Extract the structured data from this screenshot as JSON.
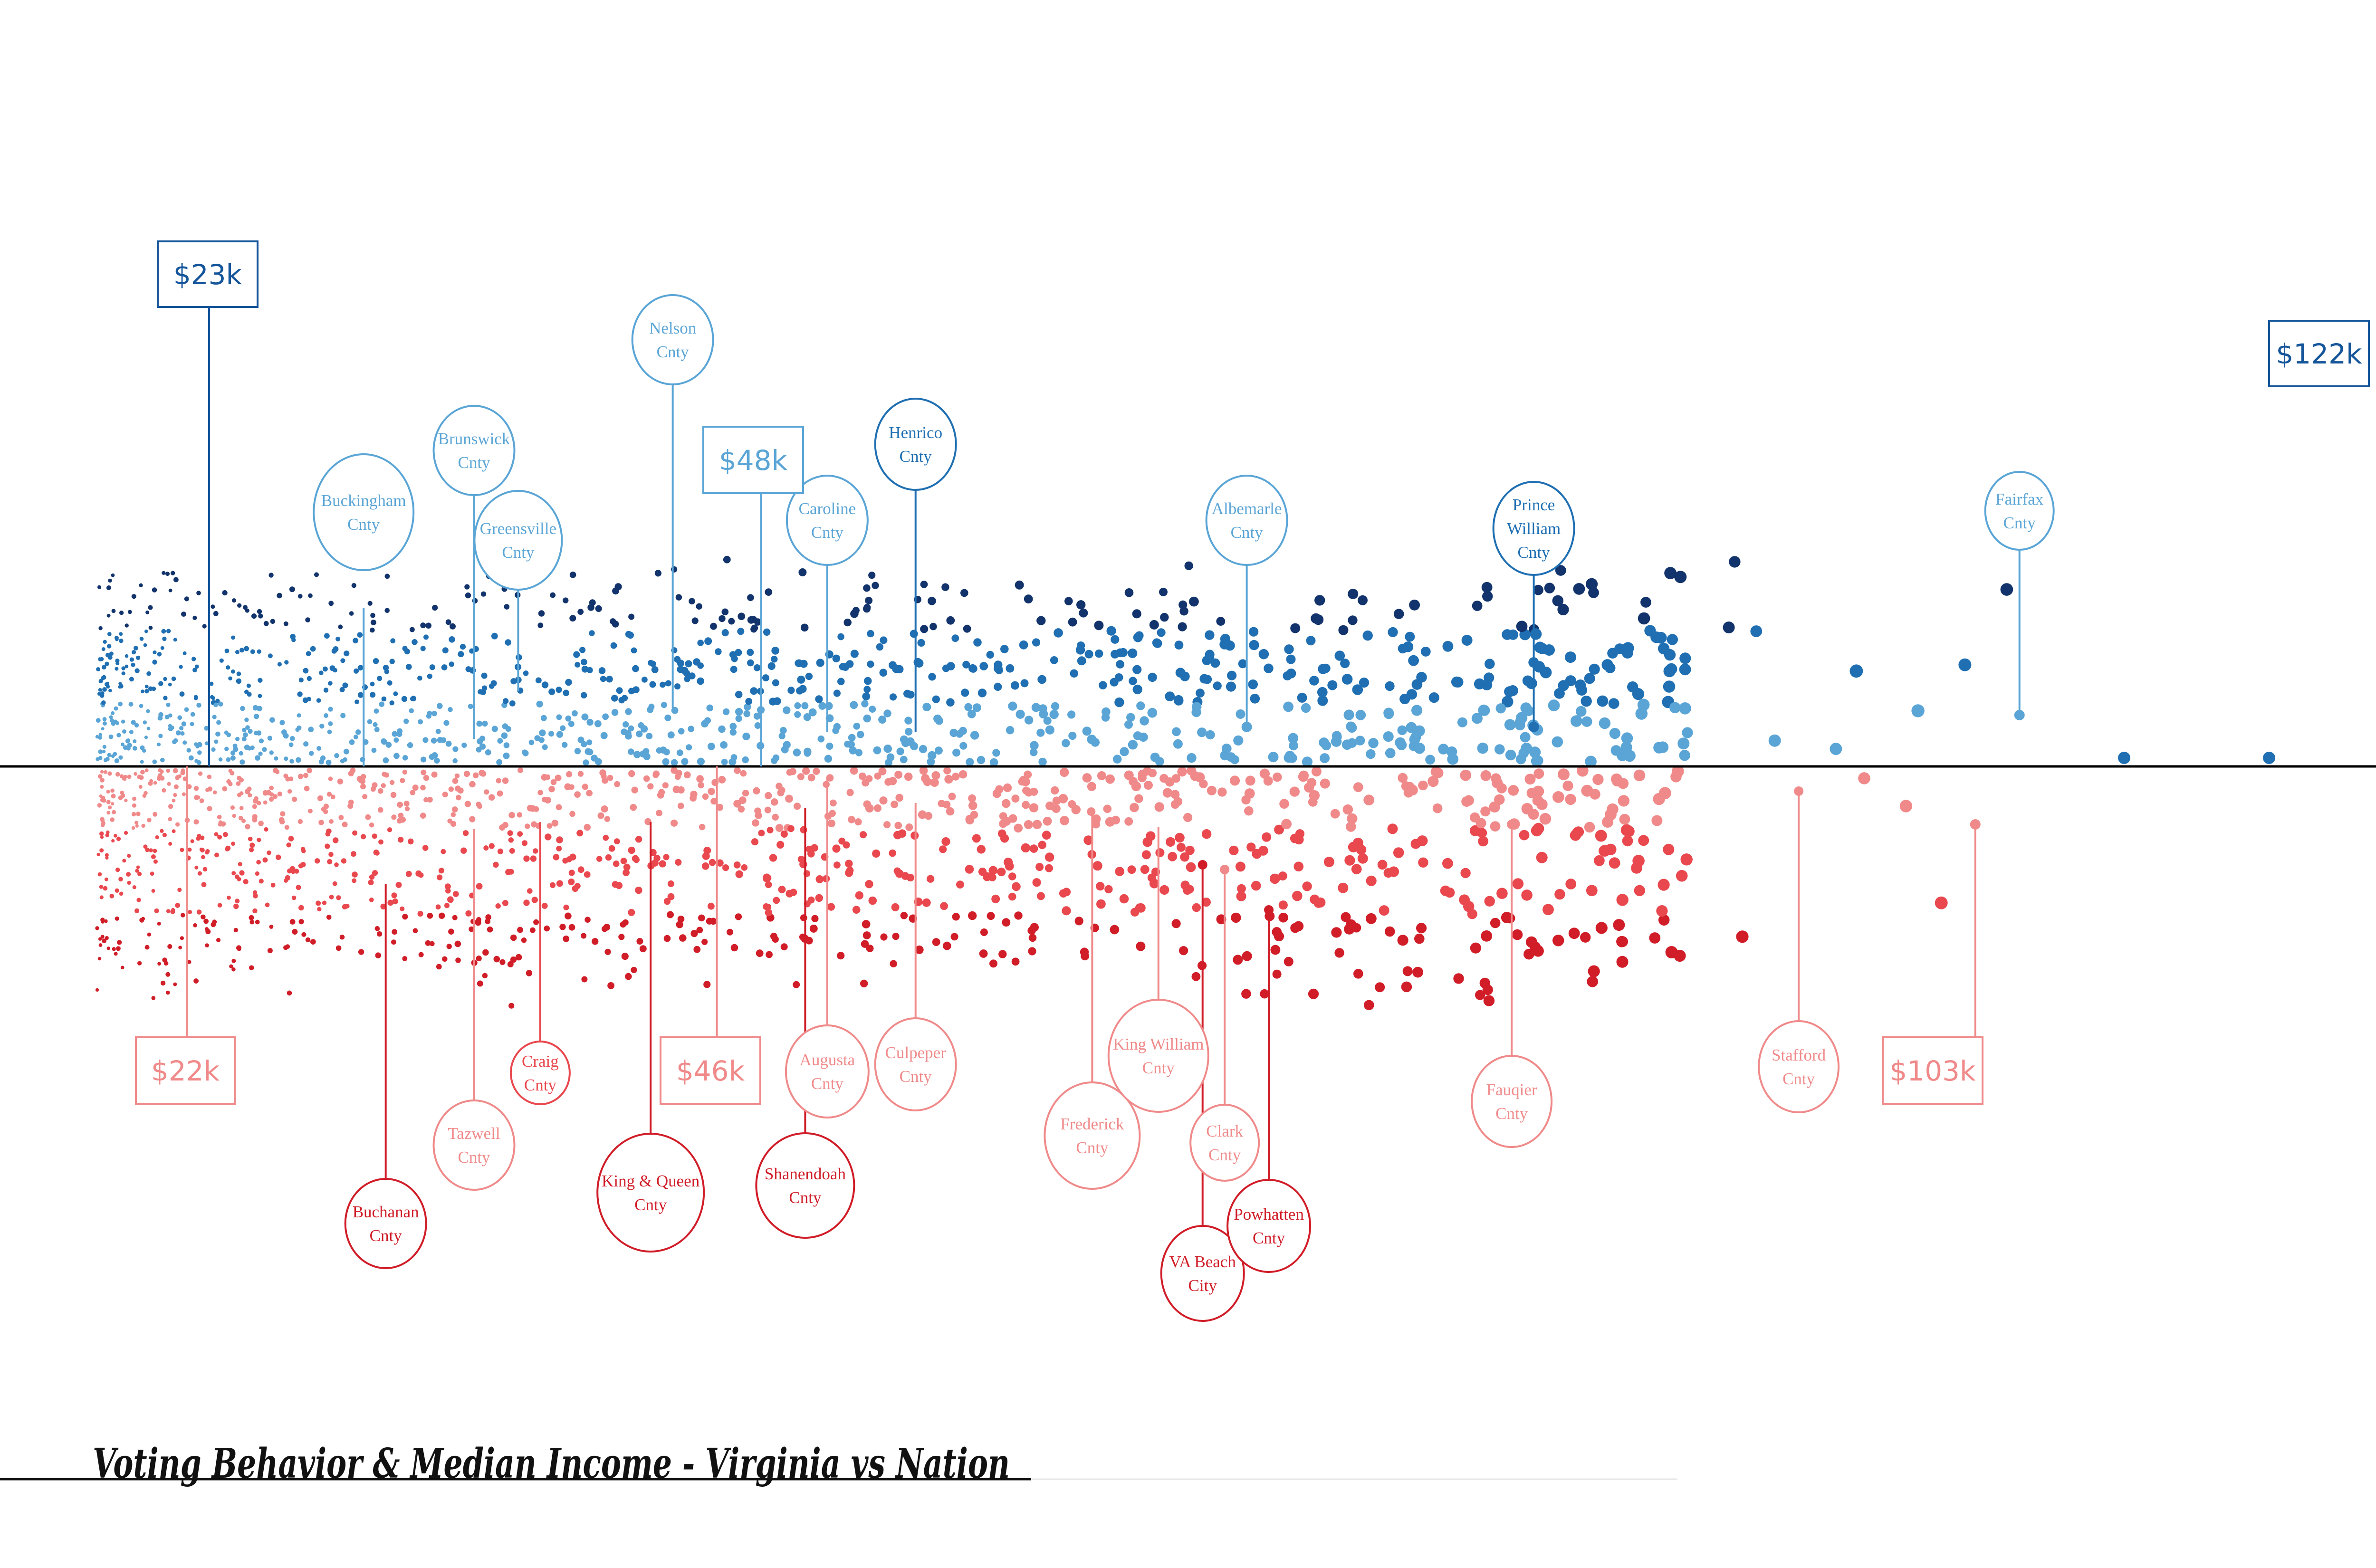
{
  "title": "Voting Behavior & Median Income - Virginia vs Nation",
  "colors": {
    "dem_light": "#5aa5d6",
    "dem_mid": "#1f6fb2",
    "dem_dark": "#12336b",
    "rep_light": "#f08a8a",
    "rep_mid": "#e8484e",
    "rep_dark": "#d01d28",
    "axis": "#000000"
  },
  "chart_data": {
    "type": "scatter",
    "title": "Voting Behavior & Median Income - Virginia vs Nation",
    "xlabel": "",
    "ylabel": "",
    "x_unit": "median household income ($k)",
    "grid": false,
    "dem_range_labels": [
      {
        "text": "$23k",
        "income": 23
      },
      {
        "text": "$48k",
        "income": 48
      },
      {
        "text": "$122k",
        "income": 122
      }
    ],
    "rep_range_labels": [
      {
        "text": "$22k",
        "income": 22
      },
      {
        "text": "$46k",
        "income": 46
      },
      {
        "text": "$103k",
        "income": 103
      }
    ],
    "dem_counties": [
      {
        "line1": "Buckingham",
        "line2": "Cnty",
        "income": 30
      },
      {
        "line1": "Brunswick",
        "line2": "Cnty",
        "income": 35
      },
      {
        "line1": "Greensville",
        "line2": "Cnty",
        "income": 37
      },
      {
        "line1": "Nelson",
        "line2": "Cnty",
        "income": 44
      },
      {
        "line1": "Caroline",
        "line2": "Cnty",
        "income": 51
      },
      {
        "line1": "Henrico",
        "line2": "Cnty",
        "income": 55
      },
      {
        "line1": "Albemarle",
        "line2": "Cnty",
        "income": 70
      },
      {
        "line1": "Prince",
        "line2": "William",
        "line3": "Cnty",
        "income": 83
      },
      {
        "line1": "Fairfax",
        "line2": "Cnty",
        "income": 105
      }
    ],
    "rep_counties": [
      {
        "line1": "Buchanan",
        "line2": "Cnty",
        "income": 31
      },
      {
        "line1": "Tazwell",
        "line2": "Cnty",
        "income": 35
      },
      {
        "line1": "Craig",
        "line2": "Cnty",
        "income": 38
      },
      {
        "line1": "King & Queen",
        "line2": "Cnty",
        "income": 43
      },
      {
        "line1": "Shanendoah",
        "line2": "Cnty",
        "income": 50
      },
      {
        "line1": "Augusta",
        "line2": "Cnty",
        "income": 51
      },
      {
        "line1": "Culpeper",
        "line2": "Cnty",
        "income": 55
      },
      {
        "line1": "Frederick",
        "line2": "Cnty",
        "income": 63
      },
      {
        "line1": "King William",
        "line2": "Cnty",
        "income": 66
      },
      {
        "line1": "VA Beach",
        "line2": "City",
        "income": 68
      },
      {
        "line1": "Clark",
        "line2": "Cnty",
        "income": 69
      },
      {
        "line1": "Powhatten",
        "line2": "Cnty",
        "income": 71
      },
      {
        "line1": "Fauqier",
        "line2": "Cnty",
        "income": 82
      },
      {
        "line1": "Stafford",
        "line2": "Cnty",
        "income": 95
      }
    ]
  }
}
